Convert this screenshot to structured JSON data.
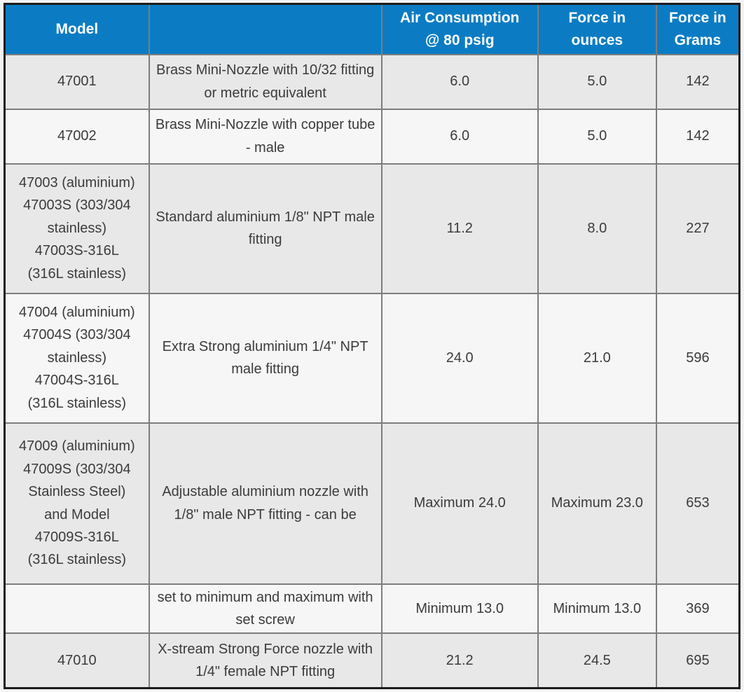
{
  "colors": {
    "header_background": "#0b7cc3",
    "header_text": "#ffffff",
    "row_shaded": "#e8e8e8",
    "row_plain": "#f6f6f6",
    "inner_border": "#7d7d7d",
    "outer_border": "#1c1c1c",
    "body_text": "#3b3b3b"
  },
  "table": {
    "headers": {
      "model": "Model",
      "description": "",
      "air_consumption": "Air Consumption\n@ 80 psig",
      "force_ounces": "Force in\nounces",
      "force_grams": "Force in\nGrams"
    },
    "rows": [
      {
        "model": "47001",
        "description": "Brass Mini-Nozzle with 10/32 fitting or metric equivalent",
        "air_consumption": "6.0",
        "force_ounces": "5.0",
        "force_grams": "142"
      },
      {
        "model": "47002",
        "description": "Brass Mini-Nozzle with copper tube - male",
        "air_consumption": "6.0",
        "force_ounces": "5.0",
        "force_grams": "142"
      },
      {
        "model": "47003 (aluminium)\n47003S (303/304\nstainless)\n47003S-316L\n(316L stainless)",
        "description": "Standard aluminium 1/8\" NPT male fitting",
        "air_consumption": "11.2",
        "force_ounces": "8.0",
        "force_grams": "227"
      },
      {
        "model": "47004 (aluminium)\n47004S (303/304\nstainless)\n47004S-316L\n(316L stainless)",
        "description": "Extra Strong aluminium 1/4\" NPT male fitting",
        "air_consumption": "24.0",
        "force_ounces": "21.0",
        "force_grams": "596"
      },
      {
        "model": "47009 (aluminium)\n47009S (303/304\nStainless Steel)\nand Model\n47009S-316L\n(316L stainless)",
        "description": "Adjustable aluminium nozzle with 1/8\" male NPT fitting - can be",
        "air_consumption": "Maximum 24.0",
        "force_ounces": "Maximum 23.0",
        "force_grams": "653"
      },
      {
        "model": "",
        "description": "set to minimum and maximum with set screw",
        "air_consumption": "Minimum 13.0",
        "force_ounces": "Minimum 13.0",
        "force_grams": "369"
      },
      {
        "model": "47010",
        "description": "X-stream Strong Force nozzle with 1/4\" female NPT fitting",
        "air_consumption": "21.2",
        "force_ounces": "24.5",
        "force_grams": "695"
      }
    ]
  },
  "chart_data": {
    "type": "table",
    "columns": [
      "Model",
      "",
      "Air Consumption @ 80 psig",
      "Force in ounces",
      "Force in Grams"
    ],
    "rows": [
      [
        "47001",
        "Brass Mini-Nozzle with 10/32 fitting or metric equivalent",
        "6.0",
        "5.0",
        "142"
      ],
      [
        "47002",
        "Brass Mini-Nozzle with copper tube - male",
        "6.0",
        "5.0",
        "142"
      ],
      [
        "47003 (aluminium) 47003S (303/304 stainless) 47003S-316L (316L stainless)",
        "Standard aluminium 1/8\" NPT male fitting",
        "11.2",
        "8.0",
        "227"
      ],
      [
        "47004 (aluminium) 47004S (303/304 stainless) 47004S-316L (316L stainless)",
        "Extra Strong aluminium 1/4\" NPT male fitting",
        "24.0",
        "21.0",
        "596"
      ],
      [
        "47009 (aluminium) 47009S (303/304 Stainless Steel) and Model 47009S-316L (316L stainless)",
        "Adjustable aluminium nozzle with 1/8\" male NPT fitting - can be",
        "Maximum 24.0",
        "Maximum 23.0",
        "653"
      ],
      [
        "",
        "set to minimum and maximum with set screw",
        "Minimum 13.0",
        "Minimum 13.0",
        "369"
      ],
      [
        "47010",
        "X-stream Strong Force nozzle with 1/4\" female NPT fitting",
        "21.2",
        "24.5",
        "695"
      ]
    ]
  }
}
